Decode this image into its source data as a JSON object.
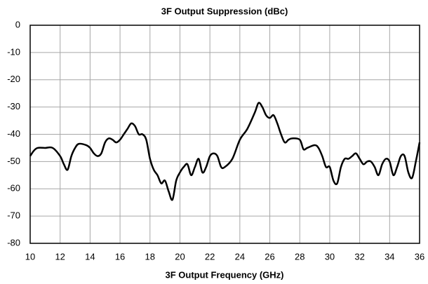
{
  "chart_data": {
    "type": "line",
    "title": "3F Output Suppression (dBc)",
    "x_label": "3F Output Frequency (GHz)",
    "x": [
      10,
      10.25,
      10.5,
      11,
      11.5,
      12,
      12.25,
      12.5,
      12.75,
      13,
      13.25,
      13.75,
      14,
      14.25,
      14.5,
      14.75,
      15,
      15.25,
      15.5,
      15.75,
      16,
      16.25,
      16.5,
      16.75,
      17,
      17.25,
      17.5,
      17.75,
      18,
      18.25,
      18.5,
      18.75,
      19,
      19.25,
      19.5,
      19.75,
      20,
      20.25,
      20.5,
      20.75,
      21,
      21.25,
      21.5,
      21.75,
      22,
      22.25,
      22.5,
      22.75,
      23,
      23.5,
      24,
      24.5,
      25,
      25.25,
      25.5,
      25.75,
      26,
      26.25,
      26.5,
      26.75,
      27,
      27.25,
      27.5,
      28,
      28.25,
      28.5,
      29,
      29.25,
      29.5,
      29.75,
      30,
      30.25,
      30.5,
      30.75,
      31,
      31.25,
      31.5,
      31.75,
      32,
      32.25,
      32.5,
      32.75,
      33,
      33.25,
      33.5,
      33.75,
      34,
      34.25,
      34.5,
      34.75,
      35,
      35.25,
      35.5,
      35.75,
      36
    ],
    "series": [
      {
        "name": "3F Output Suppression",
        "color": "#000000",
        "values": [
          -48,
          -46,
          -45,
          -45,
          -45,
          -48,
          -51,
          -53,
          -48,
          -45,
          -43.5,
          -44,
          -45,
          -47,
          -48,
          -47,
          -43,
          -41.5,
          -42,
          -43,
          -42,
          -40,
          -38,
          -36,
          -37,
          -40,
          -40,
          -42,
          -49,
          -53,
          -55,
          -58,
          -57,
          -61,
          -64,
          -57,
          -54,
          -52,
          -51,
          -55,
          -52,
          -49,
          -54,
          -52,
          -48,
          -47,
          -48,
          -52,
          -52,
          -49,
          -42,
          -38,
          -32,
          -28.5,
          -30,
          -33,
          -34,
          -33,
          -36,
          -40,
          -43,
          -42,
          -41.5,
          -42,
          -45.5,
          -45,
          -44,
          -45,
          -48,
          -52,
          -52,
          -57,
          -58,
          -52,
          -49,
          -49,
          -48,
          -47,
          -49,
          -51,
          -50,
          -50,
          -52,
          -55,
          -51,
          -49,
          -50,
          -55,
          -52,
          -48,
          -48,
          -54,
          -56,
          -50,
          -43
        ]
      }
    ],
    "xlim": [
      10,
      36
    ],
    "xticks": [
      10,
      12,
      14,
      16,
      18,
      20,
      22,
      24,
      26,
      28,
      30,
      32,
      34,
      36
    ],
    "ylim": [
      -80,
      0
    ],
    "yticks": [
      0,
      -10,
      -20,
      -30,
      -40,
      -50,
      -60,
      -70,
      -80
    ],
    "grid": true
  }
}
